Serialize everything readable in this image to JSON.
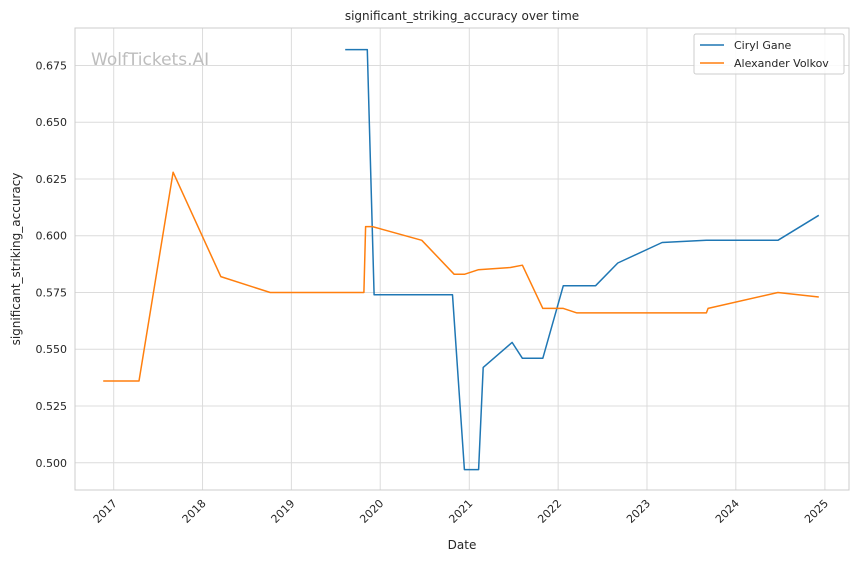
{
  "chart_data": {
    "type": "line",
    "title": "significant_striking_accuracy over time",
    "xlabel": "Date",
    "ylabel": "significant_striking_accuracy",
    "watermark": "WolfTickets.AI",
    "x_ticks": [
      "2017",
      "2018",
      "2019",
      "2020",
      "2021",
      "2022",
      "2023",
      "2024",
      "2025"
    ],
    "y_ticks": [
      "0.500",
      "0.525",
      "0.550",
      "0.575",
      "0.600",
      "0.625",
      "0.650",
      "0.675"
    ],
    "xlim": [
      "2016-07-26",
      "2025-04-10"
    ],
    "ylim": [
      0.488,
      0.6915
    ],
    "grid": true,
    "legend": "top-right",
    "series": [
      {
        "name": "Ciryl Gane",
        "color": "#1f77b4",
        "x": [
          "2019-08-10",
          "2019-11-09",
          "2019-12-07",
          "2020-06-27",
          "2020-10-24",
          "2020-12-12",
          "2021-02-08",
          "2021-02-27",
          "2021-06-26",
          "2021-08-07",
          "2021-10-30",
          "2022-01-22",
          "2022-06-04",
          "2022-09-03",
          "2023-03-04",
          "2023-09-02",
          "2024-06-22",
          "2024-12-07"
        ],
        "values": [
          0.682,
          0.682,
          0.574,
          0.574,
          0.574,
          0.497,
          0.497,
          0.542,
          0.553,
          0.546,
          0.546,
          0.578,
          0.578,
          0.588,
          0.597,
          0.598,
          0.598,
          0.609
        ]
      },
      {
        "name": "Alexander Volkov",
        "color": "#ff7f0e",
        "x": [
          "2016-11-19",
          "2017-04-15",
          "2017-09-02",
          "2018-03-17",
          "2018-10-06",
          "2019-10-26",
          "2019-11-02",
          "2019-11-30",
          "2020-06-20",
          "2020-10-31",
          "2020-12-12",
          "2021-02-06",
          "2021-06-19",
          "2021-08-07",
          "2021-10-30",
          "2022-01-22",
          "2022-03-19",
          "2023-09-02",
          "2023-09-09",
          "2024-06-22",
          "2024-12-07"
        ],
        "values": [
          0.536,
          0.536,
          0.628,
          0.582,
          0.575,
          0.575,
          0.604,
          0.604,
          0.598,
          0.583,
          0.583,
          0.585,
          0.586,
          0.587,
          0.568,
          0.568,
          0.566,
          0.566,
          0.568,
          0.575,
          0.573
        ]
      }
    ]
  }
}
